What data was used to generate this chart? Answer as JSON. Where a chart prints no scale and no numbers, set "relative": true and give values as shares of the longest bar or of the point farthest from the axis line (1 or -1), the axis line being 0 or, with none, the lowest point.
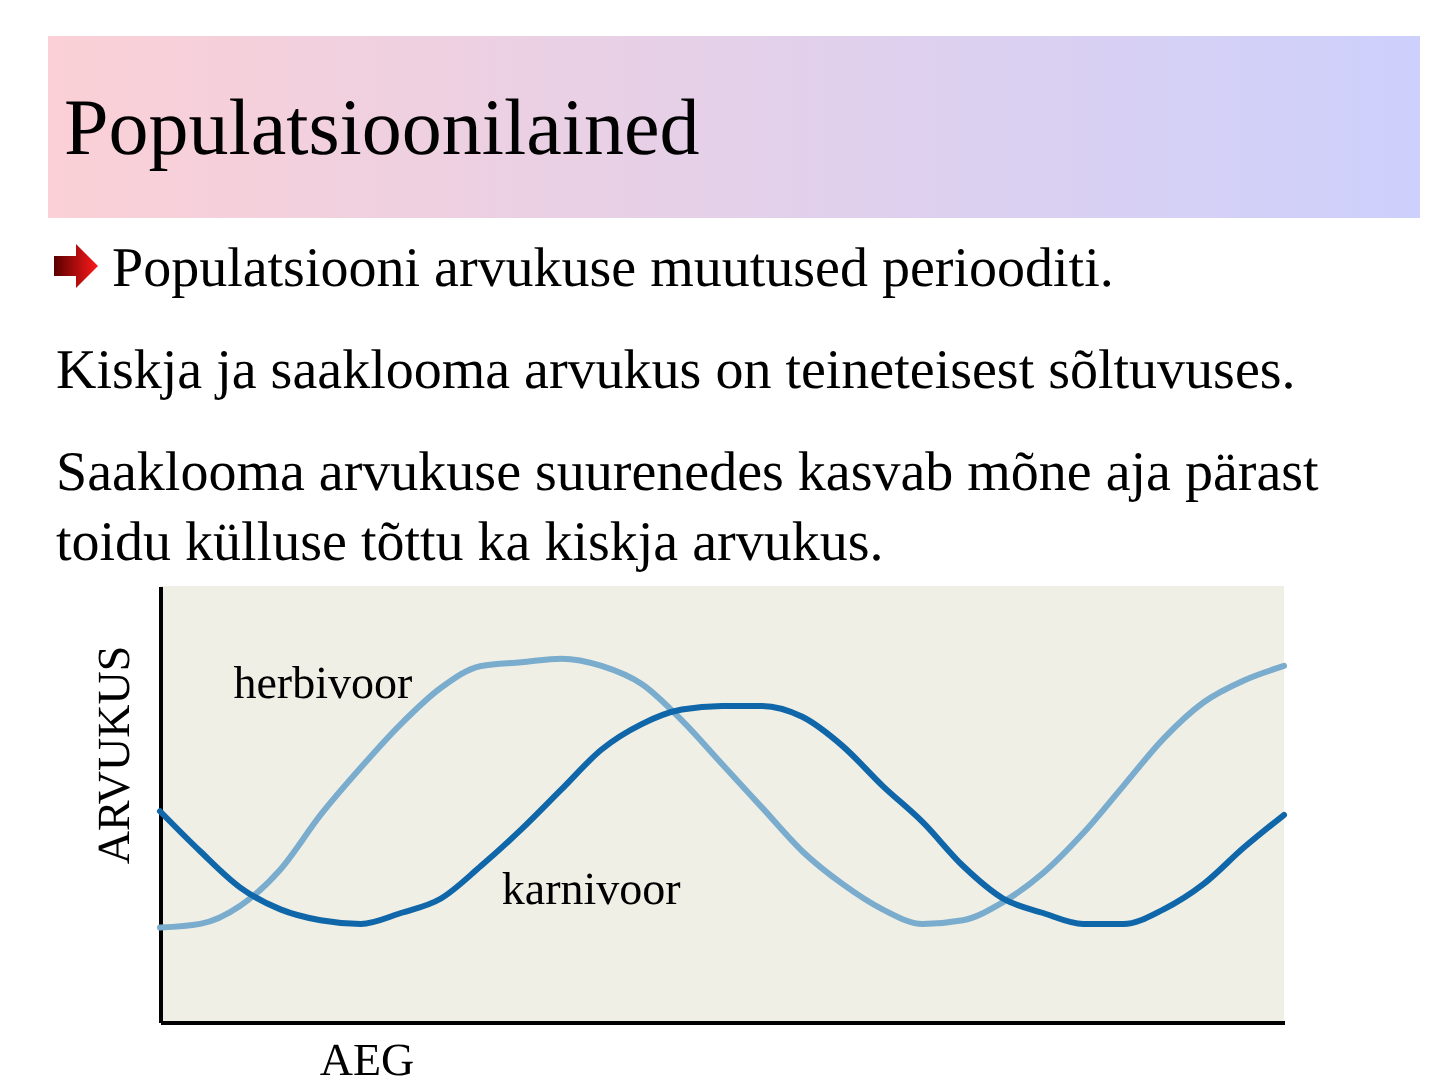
{
  "chart_data": {
    "type": "line",
    "title": "Populatsioonilained",
    "annotations": [
      "Populatsiooni arvukuse muutused periooditi.",
      "Kiskja ja saaklooma arvukus on teineteisest sõltuvuses.",
      "Saaklooma arvukuse suurenedes kasvab mõne aja pärast toidu külluse tõttu ka kiskja arvukus."
    ],
    "xlabel": "AEG",
    "ylabel": "ARVUKUS",
    "relative": true,
    "line_style": "solid",
    "categories": [
      null,
      null,
      null,
      null,
      null,
      null,
      null,
      null,
      null,
      null,
      null,
      null,
      null,
      null,
      null,
      null,
      null,
      null,
      null,
      null,
      null,
      null,
      null,
      null,
      null,
      null,
      null,
      null,
      null
    ],
    "series": [
      {
        "name": "herbivoor",
        "color": "#7aaccd",
        "values": [
          0.26,
          0.27,
          0.32,
          0.42,
          0.57,
          0.7,
          0.82,
          0.92,
          0.98,
          0.99,
          1.0,
          0.98,
          0.93,
          0.83,
          0.71,
          0.59,
          0.47,
          0.38,
          0.31,
          0.27,
          0.28,
          0.33,
          0.41,
          0.52,
          0.65,
          0.78,
          0.88,
          0.94,
          0.98
        ]
      },
      {
        "name": "karnivoor",
        "color": "#0f66a8",
        "values": [
          0.58,
          0.47,
          0.37,
          0.31,
          0.28,
          0.27,
          0.3,
          0.34,
          0.43,
          0.53,
          0.64,
          0.75,
          0.82,
          0.86,
          0.87,
          0.87,
          0.84,
          0.76,
          0.65,
          0.55,
          0.43,
          0.34,
          0.3,
          0.27,
          0.27,
          0.31,
          0.38,
          0.48,
          0.57
        ]
      }
    ]
  }
}
